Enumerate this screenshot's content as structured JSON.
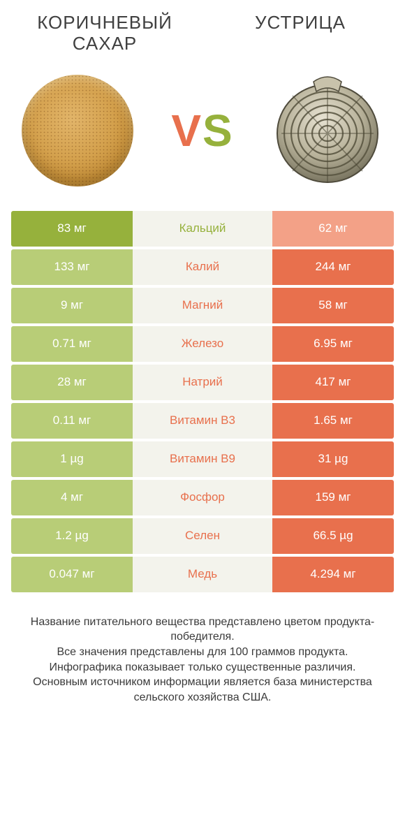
{
  "colors": {
    "left_win": "#96b13c",
    "left_dim": "#b8cd77",
    "right_win": "#e8704d",
    "right_dim": "#f3a187",
    "mid_bg": "#f3f3ec",
    "mid_text_left": "#96b13c",
    "mid_text_right": "#e8704d"
  },
  "header": {
    "left_title": "КОРИЧНЕВЫЙ САХАР",
    "right_title": "УСТРИЦА",
    "vs_v": "V",
    "vs_s": "S"
  },
  "rows": [
    {
      "label": "Кальций",
      "left": "83 мг",
      "right": "62 мг",
      "winner": "left"
    },
    {
      "label": "Калий",
      "left": "133 мг",
      "right": "244 мг",
      "winner": "right"
    },
    {
      "label": "Магний",
      "left": "9 мг",
      "right": "58 мг",
      "winner": "right"
    },
    {
      "label": "Железо",
      "left": "0.71 мг",
      "right": "6.95 мг",
      "winner": "right"
    },
    {
      "label": "Натрий",
      "left": "28 мг",
      "right": "417 мг",
      "winner": "right"
    },
    {
      "label": "Витамин B3",
      "left": "0.11 мг",
      "right": "1.65 мг",
      "winner": "right"
    },
    {
      "label": "Витамин B9",
      "left": "1 µg",
      "right": "31 µg",
      "winner": "right"
    },
    {
      "label": "Фосфор",
      "left": "4 мг",
      "right": "159 мг",
      "winner": "right"
    },
    {
      "label": "Селен",
      "left": "1.2 µg",
      "right": "66.5 µg",
      "winner": "right"
    },
    {
      "label": "Медь",
      "left": "0.047 мг",
      "right": "4.294 мг",
      "winner": "right"
    }
  ],
  "footnote": {
    "l1": "Название питательного вещества представлено цветом продукта-победителя.",
    "l2": "Все значения представлены для 100 граммов продукта.",
    "l3": "Инфографика показывает только существенные различия.",
    "l4": "Основным источником информации является база министерства сельского хозяйства США."
  }
}
